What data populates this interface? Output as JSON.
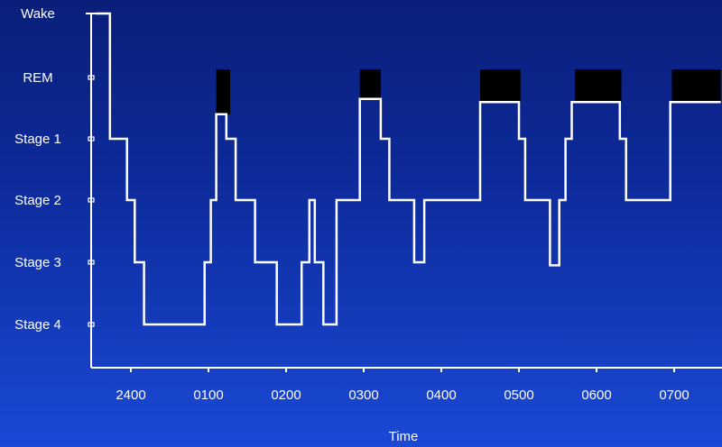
{
  "chart_data": {
    "type": "line",
    "title": "",
    "xlabel": "Time",
    "ylabel": "",
    "y_categories": [
      "Stage 4",
      "Stage 3",
      "Stage 2",
      "Stage 1",
      "REM",
      "Wake"
    ],
    "x_tick_labels": [
      "2400",
      "0100",
      "0200",
      "0300",
      "0400",
      "0500",
      "0600",
      "0700"
    ],
    "x_ticks_hours": [
      0,
      1,
      2,
      3,
      4,
      5,
      6,
      7
    ],
    "xlim_hours": [
      -0.5,
      7.6
    ],
    "grid": false,
    "legend": "none",
    "colors": {
      "line": "#ffffff",
      "rem_block": "#000000",
      "axis": "#ffffff"
    },
    "series": [
      {
        "points": [
          [
            -0.45,
            5
          ],
          [
            -0.27,
            5
          ],
          [
            -0.27,
            3
          ],
          [
            -0.05,
            3
          ],
          [
            -0.05,
            2
          ],
          [
            0.05,
            2
          ],
          [
            0.05,
            1
          ],
          [
            0.17,
            1
          ],
          [
            0.17,
            0
          ],
          [
            0.95,
            0
          ],
          [
            0.95,
            1
          ],
          [
            1.03,
            1
          ],
          [
            1.03,
            2
          ],
          [
            1.1,
            2
          ],
          [
            1.1,
            3.4
          ],
          [
            1.23,
            3.4
          ],
          [
            1.23,
            3
          ],
          [
            1.35,
            3
          ],
          [
            1.35,
            2
          ],
          [
            1.6,
            2
          ],
          [
            1.6,
            1
          ],
          [
            1.88,
            1
          ],
          [
            1.88,
            0
          ],
          [
            2.2,
            0
          ],
          [
            2.2,
            1
          ],
          [
            2.3,
            1
          ],
          [
            2.3,
            2
          ],
          [
            2.37,
            2
          ],
          [
            2.37,
            1
          ],
          [
            2.48,
            1
          ],
          [
            2.48,
            0
          ],
          [
            2.65,
            0
          ],
          [
            2.65,
            2
          ],
          [
            2.95,
            2
          ],
          [
            2.95,
            3.65
          ],
          [
            3.22,
            3.65
          ],
          [
            3.22,
            3
          ],
          [
            3.33,
            3
          ],
          [
            3.33,
            2
          ],
          [
            3.65,
            2
          ],
          [
            3.65,
            1
          ],
          [
            3.78,
            1
          ],
          [
            3.78,
            2
          ],
          [
            4.5,
            2
          ],
          [
            4.5,
            3.6
          ],
          [
            5.0,
            3.6
          ],
          [
            5.0,
            3
          ],
          [
            5.08,
            3
          ],
          [
            5.08,
            2
          ],
          [
            5.4,
            2
          ],
          [
            5.4,
            0.95
          ],
          [
            5.52,
            0.95
          ],
          [
            5.52,
            2
          ],
          [
            5.6,
            2
          ],
          [
            5.6,
            3
          ],
          [
            5.68,
            3
          ],
          [
            5.68,
            3.6
          ],
          [
            6.3,
            3.6
          ],
          [
            6.3,
            3
          ],
          [
            6.38,
            3
          ],
          [
            6.38,
            2
          ],
          [
            6.95,
            2
          ],
          [
            6.95,
            3.6
          ],
          [
            7.6,
            3.6
          ]
        ]
      }
    ],
    "rem_blocks": [
      {
        "x0": 1.1,
        "x1": 1.28,
        "y_bottom": 3.4
      },
      {
        "x0": 2.95,
        "x1": 3.22,
        "y_bottom": 3.65
      },
      {
        "x0": 4.5,
        "x1": 5.02,
        "y_bottom": 3.6
      },
      {
        "x0": 5.72,
        "x1": 6.32,
        "y_bottom": 3.6
      },
      {
        "x0": 6.97,
        "x1": 7.6,
        "y_bottom": 3.6
      }
    ]
  }
}
